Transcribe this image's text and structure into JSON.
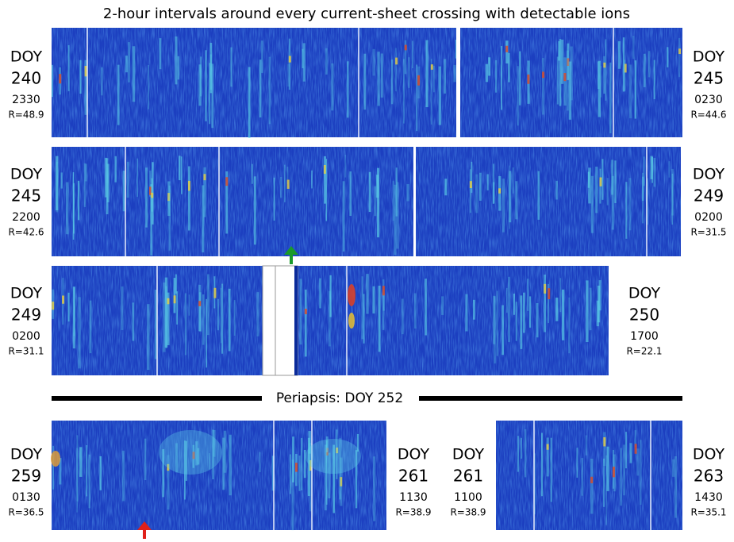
{
  "title": "2-hour intervals around every current-sheet crossing with detectable ions",
  "periapsis": "Periapsis: DOY 252",
  "label_groups": [
    {
      "label": "DOY",
      "day": "240",
      "time": "2330",
      "r": "R=48.9"
    },
    {
      "label": "DOY",
      "day": "245",
      "time": "0230",
      "r": "R=44.6"
    },
    {
      "label": "DOY",
      "day": "245",
      "time": "2200",
      "r": "R=42.6"
    },
    {
      "label": "DOY",
      "day": "249",
      "time": "0200",
      "r": "R=31.5"
    },
    {
      "label": "DOY",
      "day": "249",
      "time": "0200",
      "r": "R=31.1"
    },
    {
      "label": "DOY",
      "day": "250",
      "time": "1700",
      "r": "R=22.1"
    },
    {
      "label": "DOY",
      "day": "259",
      "time": "0130",
      "r": "R=36.5"
    },
    {
      "label": "DOY",
      "day": "261",
      "time": "1130",
      "r": "R=38.9"
    },
    {
      "label": "DOY",
      "day": "261",
      "time": "1100",
      "r": "R=38.9"
    },
    {
      "label": "DOY",
      "day": "263",
      "time": "1430",
      "r": "R=35.1"
    }
  ]
}
